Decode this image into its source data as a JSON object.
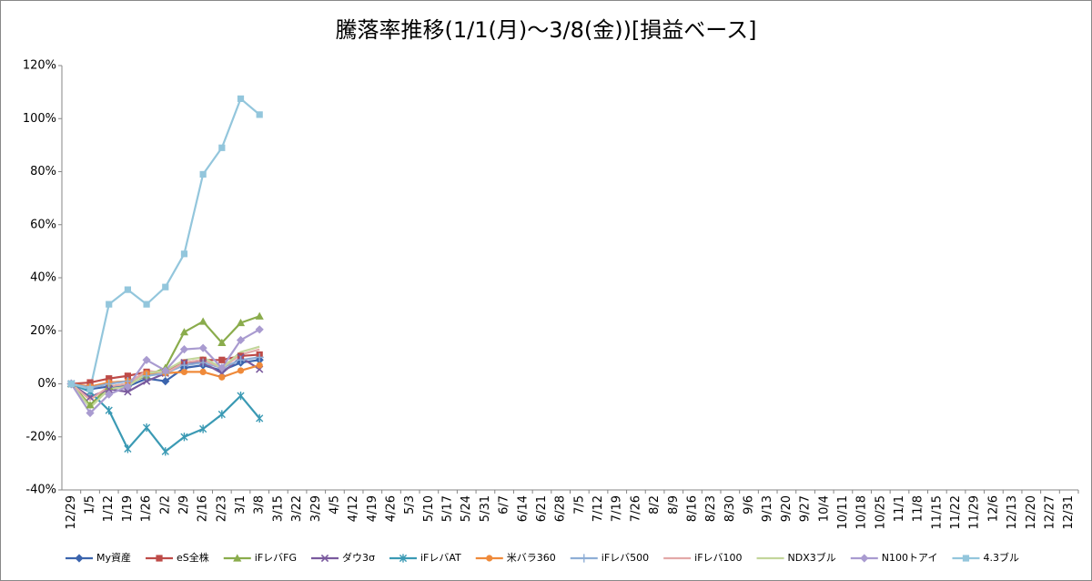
{
  "chart_data": {
    "type": "line",
    "title": "騰落率推移(1/1(月)～3/8(金))[損益ベース]",
    "categories": [
      "12/29",
      "1/5",
      "1/12",
      "1/19",
      "1/26",
      "2/2",
      "2/9",
      "2/16",
      "2/23",
      "3/1",
      "3/8",
      "3/15",
      "3/22",
      "3/29",
      "4/5",
      "4/12",
      "4/19",
      "4/26",
      "5/3",
      "5/10",
      "5/17",
      "5/24",
      "5/31",
      "6/7",
      "6/14",
      "6/21",
      "6/28",
      "7/5",
      "7/12",
      "7/19",
      "7/26",
      "8/2",
      "8/9",
      "8/16",
      "8/23",
      "8/30",
      "9/6",
      "9/13",
      "9/20",
      "9/27",
      "10/4",
      "10/11",
      "10/18",
      "10/25",
      "11/1",
      "11/8",
      "11/15",
      "11/22",
      "11/29",
      "12/6",
      "12/13",
      "12/20",
      "12/27",
      "12/31"
    ],
    "ylim": [
      -40,
      120
    ],
    "yticks": [
      {
        "value": -40,
        "label": "-40%"
      },
      {
        "value": -20,
        "label": "-20%"
      },
      {
        "value": 0,
        "label": "0%"
      },
      {
        "value": 20,
        "label": "20%"
      },
      {
        "value": 40,
        "label": "40%"
      },
      {
        "value": 60,
        "label": "60%"
      },
      {
        "value": 80,
        "label": "80%"
      },
      {
        "value": 100,
        "label": "100%"
      },
      {
        "value": 120,
        "label": "120%"
      }
    ],
    "grid": false,
    "legend": "bottom",
    "series": [
      {
        "name": "My資産",
        "color": "#3b64ad",
        "marker": "diamond",
        "values": [
          0,
          -2,
          -1,
          -1,
          2,
          1,
          6,
          7,
          5,
          8,
          9,
          null,
          null,
          null,
          null,
          null,
          null,
          null,
          null,
          null,
          null,
          null,
          null,
          null,
          null,
          null,
          null,
          null,
          null,
          null,
          null,
          null,
          null,
          null,
          null,
          null,
          null,
          null,
          null,
          null,
          null,
          null,
          null,
          null,
          null,
          null,
          null,
          null,
          null,
          null,
          null,
          null,
          null,
          null
        ]
      },
      {
        "name": "eS全株",
        "color": "#be4b48",
        "marker": "square",
        "values": [
          0,
          0.5,
          2,
          3,
          4.5,
          4.5,
          8,
          9,
          9,
          10.5,
          11,
          null,
          null,
          null,
          null,
          null,
          null,
          null,
          null,
          null,
          null,
          null,
          null,
          null,
          null,
          null,
          null,
          null,
          null,
          null,
          null,
          null,
          null,
          null,
          null,
          null,
          null,
          null,
          null,
          null,
          null,
          null,
          null,
          null,
          null,
          null,
          null,
          null,
          null,
          null,
          null,
          null,
          null,
          null
        ]
      },
      {
        "name": "iFレバFG",
        "color": "#8aac4c",
        "marker": "triangle",
        "values": [
          0,
          -8,
          -1,
          0,
          3,
          6,
          19.5,
          23.5,
          15.5,
          23,
          25.5,
          null,
          null,
          null,
          null,
          null,
          null,
          null,
          null,
          null,
          null,
          null,
          null,
          null,
          null,
          null,
          null,
          null,
          null,
          null,
          null,
          null,
          null,
          null,
          null,
          null,
          null,
          null,
          null,
          null,
          null,
          null,
          null,
          null,
          null,
          null,
          null,
          null,
          null,
          null,
          null,
          null,
          null,
          null
        ]
      },
      {
        "name": "ダウ3σ",
        "color": "#7a5a9e",
        "marker": "x",
        "values": [
          0,
          -5,
          -2,
          -3,
          1,
          4,
          8,
          8,
          4,
          10,
          5.5,
          null,
          null,
          null,
          null,
          null,
          null,
          null,
          null,
          null,
          null,
          null,
          null,
          null,
          null,
          null,
          null,
          null,
          null,
          null,
          null,
          null,
          null,
          null,
          null,
          null,
          null,
          null,
          null,
          null,
          null,
          null,
          null,
          null,
          null,
          null,
          null,
          null,
          null,
          null,
          null,
          null,
          null,
          null
        ]
      },
      {
        "name": "iFレバAT",
        "color": "#3b9ab4",
        "marker": "star",
        "values": [
          0,
          -3,
          -10,
          -24.5,
          -16.5,
          -25.5,
          -20,
          -17,
          -11.5,
          -4.5,
          -13,
          null,
          null,
          null,
          null,
          null,
          null,
          null,
          null,
          null,
          null,
          null,
          null,
          null,
          null,
          null,
          null,
          null,
          null,
          null,
          null,
          null,
          null,
          null,
          null,
          null,
          null,
          null,
          null,
          null,
          null,
          null,
          null,
          null,
          null,
          null,
          null,
          null,
          null,
          null,
          null,
          null,
          null,
          null
        ]
      },
      {
        "name": "米バラ360",
        "color": "#ef8a3a",
        "marker": "circle",
        "values": [
          0,
          -1,
          0.5,
          1,
          4,
          4,
          4.5,
          4.5,
          2.5,
          5,
          7,
          null,
          null,
          null,
          null,
          null,
          null,
          null,
          null,
          null,
          null,
          null,
          null,
          null,
          null,
          null,
          null,
          null,
          null,
          null,
          null,
          null,
          null,
          null,
          null,
          null,
          null,
          null,
          null,
          null,
          null,
          null,
          null,
          null,
          null,
          null,
          null,
          null,
          null,
          null,
          null,
          null,
          null,
          null
        ]
      },
      {
        "name": "iFレバ500",
        "color": "#8eaed6",
        "marker": "plus",
        "values": [
          0,
          -1.5,
          0,
          1,
          3,
          4,
          7,
          8,
          6,
          9,
          10,
          null,
          null,
          null,
          null,
          null,
          null,
          null,
          null,
          null,
          null,
          null,
          null,
          null,
          null,
          null,
          null,
          null,
          null,
          null,
          null,
          null,
          null,
          null,
          null,
          null,
          null,
          null,
          null,
          null,
          null,
          null,
          null,
          null,
          null,
          null,
          null,
          null,
          null,
          null,
          null,
          null,
          null,
          null
        ]
      },
      {
        "name": "iFレバ100",
        "color": "#e3a9a8",
        "marker": "none",
        "values": [
          0,
          -6,
          -1,
          0,
          5,
          4,
          8,
          9,
          6,
          11,
          13,
          null,
          null,
          null,
          null,
          null,
          null,
          null,
          null,
          null,
          null,
          null,
          null,
          null,
          null,
          null,
          null,
          null,
          null,
          null,
          null,
          null,
          null,
          null,
          null,
          null,
          null,
          null,
          null,
          null,
          null,
          null,
          null,
          null,
          null,
          null,
          null,
          null,
          null,
          null,
          null,
          null,
          null,
          null
        ]
      },
      {
        "name": "NDX3ブル",
        "color": "#c3d69b",
        "marker": "none",
        "values": [
          0,
          -9,
          -2,
          -1,
          4,
          5,
          9,
          10,
          6,
          12,
          14,
          null,
          null,
          null,
          null,
          null,
          null,
          null,
          null,
          null,
          null,
          null,
          null,
          null,
          null,
          null,
          null,
          null,
          null,
          null,
          null,
          null,
          null,
          null,
          null,
          null,
          null,
          null,
          null,
          null,
          null,
          null,
          null,
          null,
          null,
          null,
          null,
          null,
          null,
          null,
          null,
          null,
          null,
          null
        ]
      },
      {
        "name": "N100トアイ",
        "color": "#a99bd0",
        "marker": "diamond",
        "values": [
          0,
          -11,
          -4,
          -1,
          9,
          5,
          13,
          13.5,
          6,
          16.5,
          20.5,
          null,
          null,
          null,
          null,
          null,
          null,
          null,
          null,
          null,
          null,
          null,
          null,
          null,
          null,
          null,
          null,
          null,
          null,
          null,
          null,
          null,
          null,
          null,
          null,
          null,
          null,
          null,
          null,
          null,
          null,
          null,
          null,
          null,
          null,
          null,
          null,
          null,
          null,
          null,
          null,
          null,
          null,
          null
        ]
      },
      {
        "name": "4.3ブル",
        "color": "#93c6dc",
        "marker": "square",
        "values": [
          0,
          -2,
          30,
          35.5,
          30,
          36.5,
          49,
          79,
          89,
          107.5,
          101.5,
          null,
          null,
          null,
          null,
          null,
          null,
          null,
          null,
          null,
          null,
          null,
          null,
          null,
          null,
          null,
          null,
          null,
          null,
          null,
          null,
          null,
          null,
          null,
          null,
          null,
          null,
          null,
          null,
          null,
          null,
          null,
          null,
          null,
          null,
          null,
          null,
          null,
          null,
          null,
          null,
          null,
          null,
          null
        ]
      }
    ]
  }
}
